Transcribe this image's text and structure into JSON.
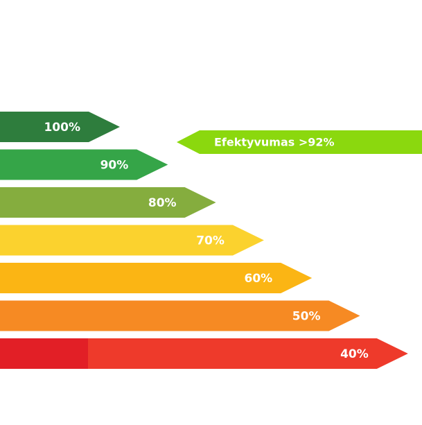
{
  "chart_data": {
    "type": "bar",
    "orientation": "horizontal",
    "categories": [
      "100%",
      "90%",
      "80%",
      "70%",
      "60%",
      "50%",
      "40%"
    ],
    "values": [
      100,
      90,
      80,
      70,
      60,
      50,
      40
    ],
    "colors": [
      "#2e7d3d",
      "#35a548",
      "#85ad3e",
      "#fbd22e",
      "#fbb514",
      "#f68a23",
      "#ee3a2b"
    ],
    "pointer": {
      "label": "Efektyvumas >92%",
      "value": 92,
      "color": "#8bd80e"
    }
  }
}
